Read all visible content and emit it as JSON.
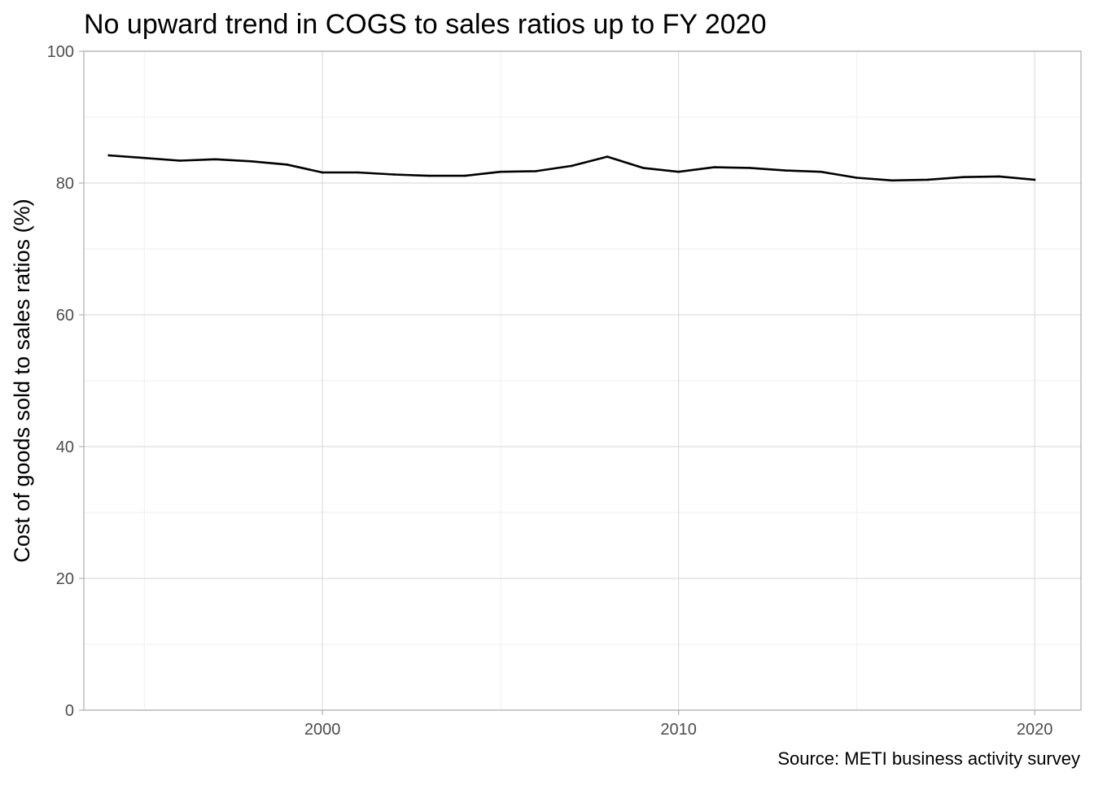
{
  "chart_data": {
    "type": "line",
    "title": "No upward trend in COGS to sales ratios up to FY 2020",
    "xlabel": "",
    "ylabel": "Cost of goods sold to sales ratios (%)",
    "caption": "Source: METI business activity survey",
    "xlim": [
      1993.3,
      2021.3
    ],
    "ylim": [
      0,
      100
    ],
    "x_ticks": [
      2000,
      2010,
      2020
    ],
    "x_minor_ticks": [
      1995,
      2005,
      2015
    ],
    "y_ticks": [
      0,
      20,
      40,
      60,
      80,
      100
    ],
    "y_minor_ticks": [
      10,
      30,
      50,
      70,
      90
    ],
    "grid": true,
    "legend": "none",
    "line_color": "#000000",
    "series": [
      {
        "x": [
          1994,
          1995,
          1996,
          1997,
          1998,
          1999,
          2000,
          2001,
          2002,
          2003,
          2004,
          2005,
          2006,
          2007,
          2008,
          2009,
          2010,
          2011,
          2012,
          2013,
          2014,
          2015,
          2016,
          2017,
          2018,
          2019,
          2020
        ],
        "values": [
          84.2,
          83.8,
          83.4,
          83.6,
          83.3,
          82.8,
          81.6,
          81.6,
          81.3,
          81.1,
          81.1,
          81.7,
          81.8,
          82.6,
          84.0,
          82.3,
          81.7,
          82.4,
          82.3,
          81.9,
          81.7,
          80.8,
          80.4,
          80.5,
          80.9,
          81.0,
          80.5
        ]
      }
    ]
  }
}
